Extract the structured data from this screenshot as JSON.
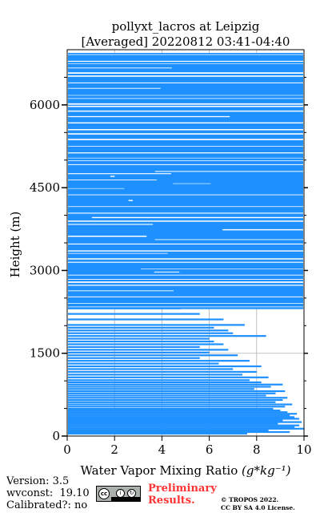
{
  "chart_data": {
    "type": "line",
    "title_line1": "pollyxt_lacros at Leipzig",
    "title_line2": "[Averaged] 20220812 03:41-04:40",
    "xlabel": "Water Vapor Mixing Ratio",
    "xlabel_unit": "(g*kg⁻¹)",
    "ylabel": "Height (m)",
    "xlim": [
      0,
      10
    ],
    "ylim": [
      0,
      7000
    ],
    "x_ticks": [
      "0",
      "2",
      "4",
      "6",
      "8",
      "10"
    ],
    "y_ticks": [
      "0",
      "1500",
      "3000",
      "4500",
      "6000"
    ],
    "grid": true,
    "series_color": "#1e90ff",
    "series": [
      {
        "name": "",
        "height": [
          30,
          60,
          90,
          120,
          150,
          180,
          210,
          240,
          270,
          300,
          330,
          360,
          390,
          420,
          450,
          480,
          520,
          560,
          600,
          640,
          680,
          720,
          760,
          800,
          840,
          880,
          920,
          960,
          1000,
          1050,
          1100,
          1150,
          1200,
          1250,
          1300,
          1350,
          1400,
          1450,
          1500,
          1550,
          1600,
          1650,
          1700,
          1750,
          1800,
          1850,
          1900,
          1950,
          2000,
          2100,
          2200,
          2300
        ],
        "wvmr": [
          7.6,
          9.4,
          8.5,
          10.0,
          9.6,
          9.8,
          8.9,
          9.9,
          9.1,
          9.8,
          9.6,
          9.4,
          9.7,
          9.3,
          9.0,
          8.7,
          9.2,
          9.5,
          8.8,
          9.1,
          9.3,
          8.4,
          8.8,
          9.2,
          7.9,
          8.6,
          9.1,
          8.2,
          7.7,
          8.5,
          7.4,
          8.0,
          7.0,
          8.2,
          6.4,
          7.7,
          5.6,
          7.2,
          6.0,
          6.8,
          5.6,
          6.6,
          6.2,
          6.0,
          8.4,
          7.0,
          6.8,
          6.2,
          7.5,
          6.6,
          5.6,
          4.8
        ]
      }
    ]
  },
  "footer": {
    "version": "Version: 3.5",
    "wvconst": "wvconst:  19.10",
    "calibrated": "Calibrated?: no",
    "preliminary_line1": "Preliminary",
    "preliminary_line2": "Results.",
    "copyright_line1": "© TROPOS 2022.",
    "copyright_line2": "CC BY SA 4.0 License."
  }
}
